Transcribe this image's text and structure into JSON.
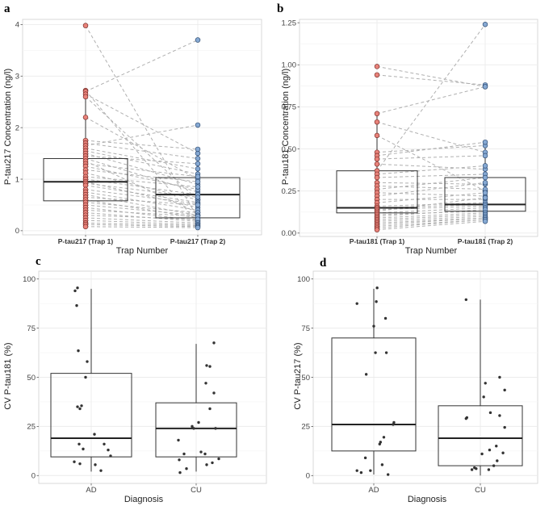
{
  "chart_data": [
    {
      "panel": "a",
      "type": "box_paired",
      "categories": [
        "P-tau217 (Trap 1)",
        "P-tau217 (Trap 2)"
      ],
      "xlabel": "Trap Number",
      "ylabel": "P-tau217 Concentration (ng/l)",
      "ylim": [
        -0.08,
        4.1
      ],
      "yticks": [
        "0",
        "1",
        "2",
        "3",
        "4"
      ],
      "yticks_values": [
        0,
        1,
        2,
        3,
        4
      ],
      "boxes": [
        {
          "q1": 0.58,
          "median": 0.95,
          "q3": 1.4,
          "whisker_low": 0.05,
          "whisker_high": 2.7
        },
        {
          "q1": 0.25,
          "median": 0.7,
          "q3": 1.03,
          "whisker_low": 0.05,
          "whisker_high": 1.58
        }
      ],
      "colors": [
        "#e8827a",
        "#86a9d3"
      ],
      "pairs": [
        [
          3.98,
          0.25
        ],
        [
          2.72,
          0.15
        ],
        [
          2.7,
          3.7
        ],
        [
          2.65,
          1.5
        ],
        [
          2.6,
          0.6
        ],
        [
          2.2,
          1.0
        ],
        [
          1.75,
          1.58
        ],
        [
          1.7,
          1.4
        ],
        [
          1.65,
          2.05
        ],
        [
          1.6,
          1.2
        ],
        [
          1.55,
          1.1
        ],
        [
          1.5,
          0.9
        ],
        [
          1.45,
          1.3
        ],
        [
          1.4,
          0.75
        ],
        [
          1.35,
          0.35
        ],
        [
          1.3,
          1.05
        ],
        [
          1.25,
          0.8
        ],
        [
          1.18,
          0.95
        ],
        [
          1.12,
          0.6
        ],
        [
          1.05,
          0.85
        ],
        [
          1.0,
          0.7
        ],
        [
          0.95,
          0.45
        ],
        [
          0.92,
          0.65
        ],
        [
          0.88,
          0.55
        ],
        [
          0.8,
          0.52
        ],
        [
          0.75,
          0.4
        ],
        [
          0.7,
          0.3
        ],
        [
          0.65,
          0.5
        ],
        [
          0.6,
          0.25
        ],
        [
          0.55,
          0.35
        ],
        [
          0.5,
          0.3
        ],
        [
          0.45,
          0.2
        ],
        [
          0.4,
          0.28
        ],
        [
          0.35,
          0.18
        ],
        [
          0.3,
          0.22
        ],
        [
          0.25,
          0.15
        ],
        [
          0.2,
          0.12
        ],
        [
          0.15,
          0.1
        ],
        [
          0.12,
          0.08
        ],
        [
          0.08,
          0.06
        ]
      ]
    },
    {
      "panel": "b",
      "type": "box_paired",
      "categories": [
        "P-tau181 (Trap 1)",
        "P-tau181 (Trap 2)"
      ],
      "xlabel": "Trap Number",
      "ylabel": "P-tau181 Concentration (ng/l)",
      "ylim": [
        -0.02,
        1.27
      ],
      "yticks": [
        "0.00",
        "0.25",
        "0.50",
        "0.75",
        "1.00",
        "1.25"
      ],
      "yticks_values": [
        0,
        0.25,
        0.5,
        0.75,
        1.0,
        1.25
      ],
      "boxes": [
        {
          "q1": 0.12,
          "median": 0.15,
          "q3": 0.37,
          "whisker_low": 0.02,
          "whisker_high": 0.71
        },
        {
          "q1": 0.13,
          "median": 0.17,
          "q3": 0.33,
          "whisker_low": 0.06,
          "whisker_high": 0.54
        }
      ],
      "colors": [
        "#e8827a",
        "#86a9d3"
      ],
      "pairs": [
        [
          0.99,
          0.87
        ],
        [
          0.94,
          0.88
        ],
        [
          0.71,
          0.87
        ],
        [
          0.66,
          0.48
        ],
        [
          0.58,
          0.25
        ],
        [
          0.48,
          0.52
        ],
        [
          0.46,
          0.54
        ],
        [
          0.44,
          0.46
        ],
        [
          0.41,
          0.38
        ],
        [
          0.37,
          1.24
        ],
        [
          0.35,
          0.4
        ],
        [
          0.33,
          0.35
        ],
        [
          0.3,
          0.29
        ],
        [
          0.28,
          0.26
        ],
        [
          0.26,
          0.33
        ],
        [
          0.24,
          0.22
        ],
        [
          0.22,
          0.3
        ],
        [
          0.2,
          0.2
        ],
        [
          0.18,
          0.24
        ],
        [
          0.16,
          0.18
        ],
        [
          0.15,
          0.17
        ],
        [
          0.14,
          0.16
        ],
        [
          0.13,
          0.21
        ],
        [
          0.12,
          0.15
        ],
        [
          0.11,
          0.13
        ],
        [
          0.1,
          0.14
        ],
        [
          0.09,
          0.12
        ],
        [
          0.08,
          0.11
        ],
        [
          0.07,
          0.1
        ],
        [
          0.06,
          0.09
        ],
        [
          0.05,
          0.09
        ],
        [
          0.04,
          0.08
        ],
        [
          0.03,
          0.08
        ],
        [
          0.02,
          0.07
        ]
      ]
    },
    {
      "panel": "c",
      "type": "box_jitter",
      "categories": [
        "AD",
        "CU"
      ],
      "xlabel": "Diagnosis",
      "ylabel": "CV P-tau181 (%)",
      "ylim": [
        -4,
        104
      ],
      "yticks": [
        "0",
        "25",
        "50",
        "75",
        "100"
      ],
      "yticks_values": [
        0,
        25,
        50,
        75,
        100
      ],
      "boxes": [
        {
          "q1": 9.5,
          "median": 19,
          "q3": 52,
          "whisker_low": 2,
          "whisker_high": 95
        },
        {
          "q1": 9.5,
          "median": 24,
          "q3": 37,
          "whisker_low": 2,
          "whisker_high": 67
        }
      ],
      "points": [
        {
          "group": 0,
          "offset": -0.2,
          "y": 94
        },
        {
          "group": 0,
          "offset": -0.17,
          "y": 95.5
        },
        {
          "group": 0,
          "offset": -0.18,
          "y": 86.5
        },
        {
          "group": 0,
          "offset": -0.16,
          "y": 63.5
        },
        {
          "group": 0,
          "offset": -0.05,
          "y": 58
        },
        {
          "group": 0,
          "offset": -0.07,
          "y": 50
        },
        {
          "group": 0,
          "offset": -0.17,
          "y": 35
        },
        {
          "group": 0,
          "offset": -0.14,
          "y": 34
        },
        {
          "group": 0,
          "offset": -0.12,
          "y": 35.5
        },
        {
          "group": 0,
          "offset": 0.04,
          "y": 21
        },
        {
          "group": 0,
          "offset": 0.16,
          "y": 16
        },
        {
          "group": 0,
          "offset": -0.15,
          "y": 16
        },
        {
          "group": 0,
          "offset": -0.1,
          "y": 13.5
        },
        {
          "group": 0,
          "offset": 0.21,
          "y": 13
        },
        {
          "group": 0,
          "offset": 0.24,
          "y": 10
        },
        {
          "group": 0,
          "offset": -0.21,
          "y": 7
        },
        {
          "group": 0,
          "offset": -0.14,
          "y": 6
        },
        {
          "group": 0,
          "offset": 0.05,
          "y": 5.5
        },
        {
          "group": 0,
          "offset": 0.12,
          "y": 2.5
        },
        {
          "group": 1,
          "offset": 0.22,
          "y": 67.5
        },
        {
          "group": 1,
          "offset": 0.13,
          "y": 56
        },
        {
          "group": 1,
          "offset": 0.17,
          "y": 55.5
        },
        {
          "group": 1,
          "offset": 0.12,
          "y": 47
        },
        {
          "group": 1,
          "offset": 0.22,
          "y": 42
        },
        {
          "group": 1,
          "offset": 0.17,
          "y": 34
        },
        {
          "group": 1,
          "offset": 0.03,
          "y": 27
        },
        {
          "group": 1,
          "offset": -0.05,
          "y": 25
        },
        {
          "group": 1,
          "offset": -0.03,
          "y": 24
        },
        {
          "group": 1,
          "offset": 0.24,
          "y": 24
        },
        {
          "group": 1,
          "offset": -0.22,
          "y": 18
        },
        {
          "group": 1,
          "offset": 0.06,
          "y": 12
        },
        {
          "group": 1,
          "offset": -0.15,
          "y": 11
        },
        {
          "group": 1,
          "offset": 0.11,
          "y": 11
        },
        {
          "group": 1,
          "offset": 0.28,
          "y": 8.5
        },
        {
          "group": 1,
          "offset": -0.21,
          "y": 8
        },
        {
          "group": 1,
          "offset": 0.2,
          "y": 6.5
        },
        {
          "group": 1,
          "offset": 0.13,
          "y": 5.5
        },
        {
          "group": 1,
          "offset": -0.12,
          "y": 3.5
        },
        {
          "group": 1,
          "offset": -0.2,
          "y": 1.5
        }
      ]
    },
    {
      "panel": "d",
      "type": "box_jitter",
      "categories": [
        "AD",
        "CU"
      ],
      "xlabel": "Diagnosis",
      "ylabel": "CV P-tau217 (%)",
      "ylim": [
        -4,
        104
      ],
      "yticks": [
        "0",
        "25",
        "50",
        "75",
        "100"
      ],
      "yticks_values": [
        0,
        25,
        50,
        75,
        100
      ],
      "boxes": [
        {
          "q1": 12.5,
          "median": 26,
          "q3": 70,
          "whisker_low": 0.5,
          "whisker_high": 95
        },
        {
          "q1": 5,
          "median": 19,
          "q3": 35.5,
          "whisker_low": 0,
          "whisker_high": 89.5
        }
      ],
      "points": [
        {
          "group": 0,
          "offset": 0.04,
          "y": 95.5
        },
        {
          "group": 0,
          "offset": 0.03,
          "y": 88.5
        },
        {
          "group": 0,
          "offset": -0.2,
          "y": 87.5
        },
        {
          "group": 0,
          "offset": 0.14,
          "y": 80
        },
        {
          "group": 0,
          "offset": 0.0,
          "y": 76
        },
        {
          "group": 0,
          "offset": 0.02,
          "y": 62.5
        },
        {
          "group": 0,
          "offset": 0.15,
          "y": 62.5
        },
        {
          "group": 0,
          "offset": -0.09,
          "y": 51.5
        },
        {
          "group": 0,
          "offset": 0.24,
          "y": 27
        },
        {
          "group": 0,
          "offset": 0.23,
          "y": 26
        },
        {
          "group": 0,
          "offset": 0.12,
          "y": 19.5
        },
        {
          "group": 0,
          "offset": 0.08,
          "y": 17
        },
        {
          "group": 0,
          "offset": 0.07,
          "y": 16
        },
        {
          "group": 0,
          "offset": -0.1,
          "y": 9
        },
        {
          "group": 0,
          "offset": 0.1,
          "y": 5.5
        },
        {
          "group": 0,
          "offset": -0.04,
          "y": 2.5
        },
        {
          "group": 0,
          "offset": -0.2,
          "y": 2.5
        },
        {
          "group": 0,
          "offset": -0.15,
          "y": 1.5
        },
        {
          "group": 0,
          "offset": 0.17,
          "y": 0.5
        },
        {
          "group": 1,
          "offset": -0.17,
          "y": 89.5
        },
        {
          "group": 1,
          "offset": 0.23,
          "y": 50
        },
        {
          "group": 1,
          "offset": 0.06,
          "y": 47
        },
        {
          "group": 1,
          "offset": 0.29,
          "y": 43.5
        },
        {
          "group": 1,
          "offset": 0.04,
          "y": 40
        },
        {
          "group": 1,
          "offset": 0.12,
          "y": 32
        },
        {
          "group": 1,
          "offset": 0.23,
          "y": 30.5
        },
        {
          "group": 1,
          "offset": -0.16,
          "y": 29.5
        },
        {
          "group": 1,
          "offset": -0.17,
          "y": 29
        },
        {
          "group": 1,
          "offset": 0.29,
          "y": 24.5
        },
        {
          "group": 1,
          "offset": 0.19,
          "y": 15
        },
        {
          "group": 1,
          "offset": 0.11,
          "y": 13
        },
        {
          "group": 1,
          "offset": 0.27,
          "y": 11.5
        },
        {
          "group": 1,
          "offset": 0.02,
          "y": 11
        },
        {
          "group": 1,
          "offset": 0.2,
          "y": 7.5
        },
        {
          "group": 1,
          "offset": 0.16,
          "y": 5
        },
        {
          "group": 1,
          "offset": -0.07,
          "y": 4
        },
        {
          "group": 1,
          "offset": -0.05,
          "y": 3.5
        },
        {
          "group": 1,
          "offset": -0.1,
          "y": 3
        },
        {
          "group": 1,
          "offset": 0.1,
          "y": 3
        }
      ]
    }
  ]
}
